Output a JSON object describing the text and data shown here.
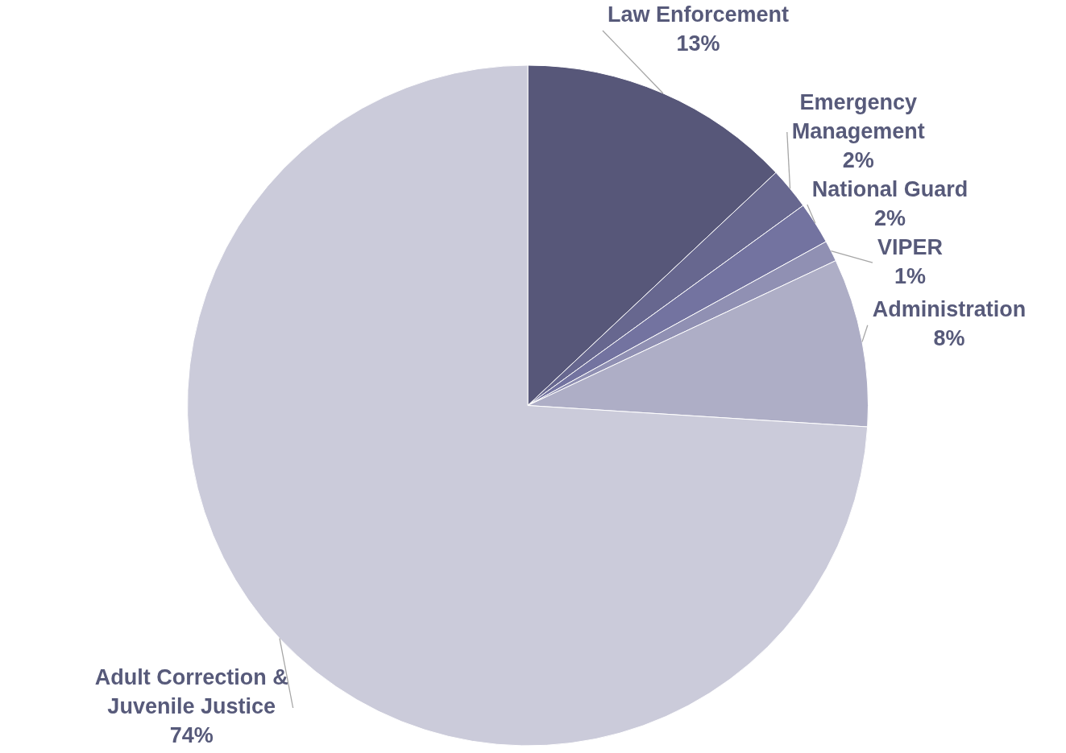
{
  "chart_data": {
    "type": "pie",
    "categories": [
      "Law Enforcement",
      "Emergency Management",
      "National Guard",
      "VIPER",
      "Administration",
      "Adult Correction & Juvenile Justice"
    ],
    "values": [
      13,
      2,
      2,
      1,
      8,
      74
    ],
    "value_labels": [
      "13%",
      "2%",
      "2%",
      "1%",
      "8%",
      "74%"
    ],
    "colors": [
      "#575779",
      "#67678f",
      "#7373a0",
      "#9090b3",
      "#aeaec6",
      "#cbcbda"
    ],
    "legend": false
  }
}
